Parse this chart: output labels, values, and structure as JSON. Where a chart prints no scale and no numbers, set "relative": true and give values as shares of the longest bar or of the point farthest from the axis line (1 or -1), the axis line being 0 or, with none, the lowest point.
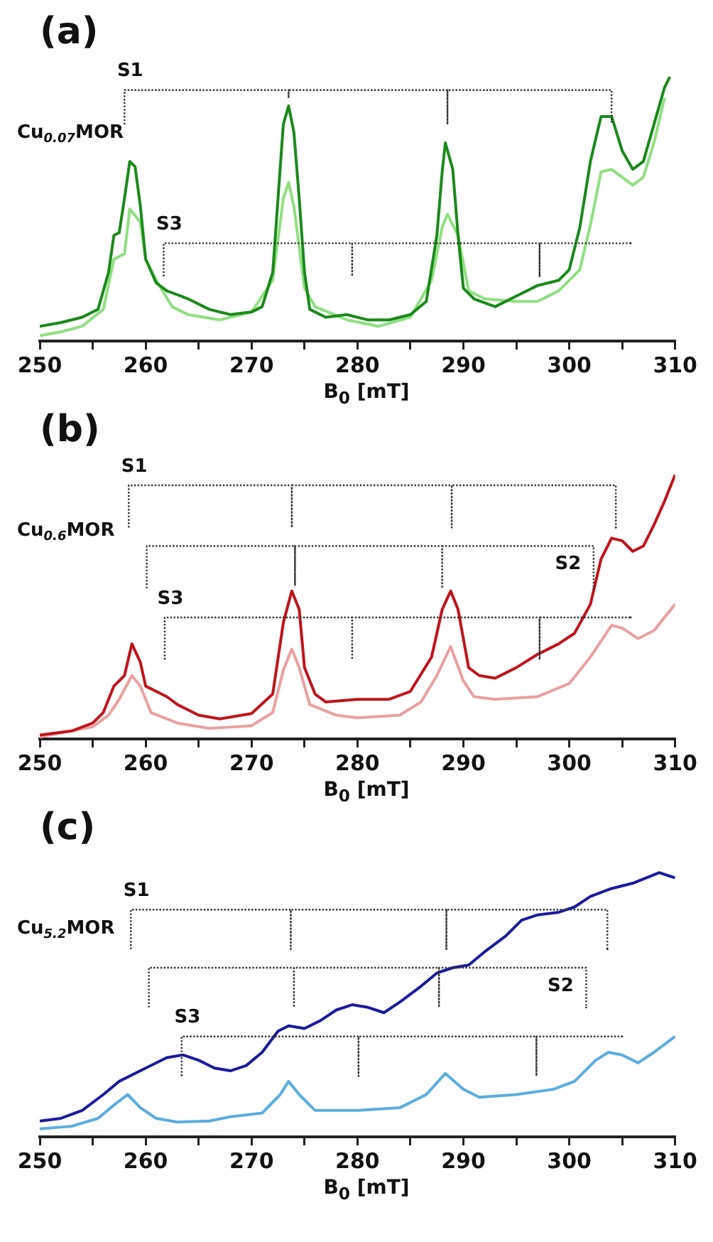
{
  "chart_data": [
    {
      "type": "line",
      "title": "(a)",
      "xlabel": "B$_{0}$ [mT]",
      "relative": true,
      "marker": "none",
      "tick_labels": "x",
      "legend": false,
      "xlim": [
        250,
        310
      ],
      "xticks": [
        250,
        {
          "value": 255,
          "label": null
        },
        260,
        {
          "value": 265,
          "label": null
        },
        270,
        {
          "value": 275,
          "label": null
        },
        280,
        {
          "value": 285,
          "label": null
        },
        290,
        {
          "value": 295,
          "label": null
        },
        300,
        {
          "value": 305,
          "label": null
        },
        310
      ],
      "annotations": [
        "Cu$_{0.07}$MOR"
      ],
      "series": [
        {
          "color": "#1a8a1a",
          "x": [
            250,
            252,
            254,
            255.5,
            256.5,
            257,
            257.5,
            258,
            258.5,
            259,
            259.5,
            260,
            261,
            262,
            264,
            266,
            268,
            270,
            271,
            272,
            272.5,
            273,
            273.5,
            274,
            274.5,
            275,
            275.5,
            277,
            279,
            281,
            283,
            285,
            286.5,
            287.5,
            288,
            288.3,
            289,
            289.5,
            290,
            291,
            293,
            295,
            297,
            299,
            300,
            301,
            302,
            303,
            304,
            305,
            306,
            307,
            308,
            309,
            309.5
          ],
          "values": [
            0.056,
            0.07,
            0.09,
            0.12,
            0.26,
            0.4,
            0.41,
            0.54,
            0.68,
            0.66,
            0.51,
            0.31,
            0.22,
            0.19,
            0.16,
            0.12,
            0.1,
            0.11,
            0.13,
            0.26,
            0.54,
            0.82,
            0.89,
            0.79,
            0.54,
            0.26,
            0.12,
            0.09,
            0.1,
            0.08,
            0.08,
            0.1,
            0.15,
            0.4,
            0.64,
            0.75,
            0.65,
            0.4,
            0.2,
            0.16,
            0.13,
            0.17,
            0.21,
            0.23,
            0.27,
            0.43,
            0.68,
            0.85,
            0.85,
            0.72,
            0.65,
            0.68,
            0.82,
            0.96,
            1.0
          ]
        },
        {
          "color": "#90e080",
          "x": [
            250,
            252,
            254,
            256,
            257,
            258,
            258.5,
            259.5,
            260,
            261,
            262.5,
            264,
            267,
            270,
            272,
            273,
            273.5,
            274,
            275,
            276,
            279,
            282,
            285,
            287,
            288,
            288.5,
            289.5,
            290.5,
            292,
            295,
            297,
            299,
            301,
            302,
            303,
            304,
            305,
            306,
            307,
            308,
            309
          ],
          "values": [
            0.02,
            0.035,
            0.056,
            0.12,
            0.31,
            0.33,
            0.5,
            0.45,
            0.31,
            0.23,
            0.13,
            0.1,
            0.08,
            0.11,
            0.23,
            0.54,
            0.6,
            0.51,
            0.2,
            0.13,
            0.08,
            0.056,
            0.09,
            0.23,
            0.43,
            0.48,
            0.4,
            0.19,
            0.16,
            0.15,
            0.15,
            0.19,
            0.27,
            0.44,
            0.64,
            0.65,
            0.62,
            0.59,
            0.62,
            0.75,
            0.92
          ]
        },
        {
          "name": "S1",
          "color": "#333333",
          "line_style": "dotted",
          "x": [
            258,
            258,
            273.5,
            273.5,
            273.5,
            288.5,
            288.5,
            288.5,
            304,
            304
          ],
          "values": [
            0.82,
            0.95,
            0.95,
            0.92,
            0.95,
            0.95,
            0.82,
            0.95,
            0.95,
            0.83
          ]
        },
        {
          "name": "S3",
          "color": "#333333",
          "line_style": "dotted",
          "x": [
            261.7,
            261.7,
            279.5,
            279.5,
            279.5,
            297.2,
            297.2,
            297.2,
            305.8
          ],
          "values": [
            0.245,
            0.37,
            0.37,
            0.245,
            0.37,
            0.37,
            0.245,
            0.37,
            0.37
          ]
        }
      ]
    },
    {
      "type": "line",
      "title": "(b)",
      "xlabel": "B$_{0}$ [mT]",
      "relative": true,
      "marker": "none",
      "tick_labels": "x",
      "legend": false,
      "xlim": [
        250,
        310
      ],
      "xticks": [
        250,
        {
          "value": 255,
          "label": null
        },
        260,
        {
          "value": 265,
          "label": null
        },
        270,
        {
          "value": 275,
          "label": null
        },
        280,
        {
          "value": 285,
          "label": null
        },
        290,
        {
          "value": 295,
          "label": null
        },
        300,
        {
          "value": 305,
          "label": null
        },
        310
      ],
      "annotations": [
        "Cu$_{0.6}$MOR"
      ],
      "series": [
        {
          "color": "#c0141c",
          "x": [
            250,
            253,
            255,
            256,
            257,
            258,
            258.7,
            259.5,
            260,
            262,
            263,
            265,
            267,
            270,
            272,
            273,
            273.8,
            274.5,
            275,
            276,
            277,
            280,
            283,
            285,
            287,
            288,
            288.8,
            289.5,
            290.5,
            291.5,
            293,
            295,
            297,
            299,
            300.5,
            302,
            303,
            304,
            305,
            306,
            307,
            308,
            309,
            310
          ],
          "values": [
            0.015,
            0.03,
            0.06,
            0.1,
            0.2,
            0.24,
            0.36,
            0.29,
            0.2,
            0.16,
            0.13,
            0.09,
            0.076,
            0.096,
            0.17,
            0.44,
            0.56,
            0.49,
            0.27,
            0.17,
            0.14,
            0.15,
            0.15,
            0.18,
            0.31,
            0.49,
            0.56,
            0.49,
            0.27,
            0.24,
            0.23,
            0.27,
            0.32,
            0.36,
            0.4,
            0.51,
            0.68,
            0.76,
            0.75,
            0.71,
            0.73,
            0.81,
            0.9,
            1.0
          ]
        },
        {
          "color": "#eba0a0",
          "x": [
            250,
            255,
            256.5,
            257.5,
            258.7,
            259.5,
            260.5,
            263,
            266,
            270,
            272,
            273,
            273.8,
            274.5,
            275.5,
            278,
            280,
            284,
            286,
            287.5,
            288.8,
            290,
            291,
            293,
            297,
            300,
            302,
            304,
            305,
            306.5,
            308,
            310
          ],
          "values": [
            0.007,
            0.046,
            0.09,
            0.15,
            0.24,
            0.2,
            0.1,
            0.06,
            0.04,
            0.05,
            0.1,
            0.26,
            0.34,
            0.27,
            0.13,
            0.09,
            0.08,
            0.09,
            0.14,
            0.24,
            0.35,
            0.22,
            0.16,
            0.15,
            0.16,
            0.21,
            0.31,
            0.43,
            0.42,
            0.38,
            0.41,
            0.51
          ]
        },
        {
          "name": "S1",
          "color": "#333333",
          "line_style": "dotted",
          "x": [
            258.4,
            258.4,
            273.8,
            273.8,
            273.8,
            288.9,
            288.9,
            288.9,
            304.4,
            304.4
          ],
          "values": [
            0.8,
            0.96,
            0.96,
            0.8,
            0.96,
            0.96,
            0.8,
            0.96,
            0.96,
            0.8
          ]
        },
        {
          "name": "S2",
          "color": "#333333",
          "line_style": "dotted",
          "x": [
            260.1,
            260.1,
            274.1,
            274.1,
            274.1,
            288,
            288,
            288,
            302.3,
            302.3
          ],
          "values": [
            0.57,
            0.73,
            0.73,
            0.58,
            0.73,
            0.73,
            0.57,
            0.73,
            0.73,
            0.57
          ]
        },
        {
          "name": "S3",
          "color": "#333333",
          "line_style": "dotted",
          "x": [
            261.8,
            261.8,
            279.5,
            279.5,
            279.5,
            297.2,
            297.2,
            297.2,
            305.8
          ],
          "values": [
            0.3,
            0.46,
            0.46,
            0.3,
            0.46,
            0.46,
            0.3,
            0.46,
            0.46
          ]
        }
      ]
    },
    {
      "type": "line",
      "title": "(c)",
      "xlabel": "B$_{0}$ [mT]",
      "relative": true,
      "marker": "none",
      "tick_labels": "x",
      "legend": false,
      "xlim": [
        250,
        310
      ],
      "xticks": [
        250,
        {
          "value": 255,
          "label": null
        },
        260,
        {
          "value": 265,
          "label": null
        },
        270,
        {
          "value": 275,
          "label": null
        },
        280,
        {
          "value": 285,
          "label": null
        },
        290,
        {
          "value": 295,
          "label": null
        },
        300,
        {
          "value": 305,
          "label": null
        },
        310
      ],
      "annotations": [
        "Cu$_{5.2}$MOR"
      ],
      "series": [
        {
          "color": "#1a1aa0",
          "x": [
            250,
            252,
            254,
            256,
            257.5,
            260,
            262,
            263.5,
            265,
            266.5,
            268,
            269.5,
            271,
            272.5,
            273.5,
            275,
            276.5,
            278,
            279.5,
            281,
            282.5,
            284,
            286,
            287.5,
            289,
            290.5,
            292,
            294,
            295.5,
            297,
            299,
            300.5,
            302,
            304,
            306,
            308.5,
            310
          ],
          "values": [
            0.06,
            0.07,
            0.1,
            0.16,
            0.21,
            0.26,
            0.3,
            0.31,
            0.29,
            0.26,
            0.25,
            0.27,
            0.32,
            0.4,
            0.42,
            0.41,
            0.44,
            0.48,
            0.5,
            0.49,
            0.47,
            0.51,
            0.57,
            0.62,
            0.64,
            0.65,
            0.7,
            0.76,
            0.82,
            0.84,
            0.85,
            0.87,
            0.91,
            0.94,
            0.96,
            1.0,
            0.98
          ]
        },
        {
          "color": "#5aaee0",
          "x": [
            250,
            253,
            255.5,
            257,
            258.3,
            259.5,
            261,
            263,
            266,
            268,
            271,
            272.7,
            273.5,
            274.5,
            276,
            280,
            284,
            286.5,
            288.3,
            290,
            291.5,
            295,
            298.5,
            300.5,
            302.5,
            303.7,
            305,
            306.5,
            308,
            310
          ],
          "values": [
            0.03,
            0.04,
            0.07,
            0.12,
            0.16,
            0.11,
            0.07,
            0.056,
            0.06,
            0.076,
            0.09,
            0.16,
            0.21,
            0.16,
            0.1,
            0.1,
            0.11,
            0.16,
            0.24,
            0.18,
            0.15,
            0.16,
            0.18,
            0.21,
            0.29,
            0.32,
            0.31,
            0.28,
            0.32,
            0.38
          ]
        },
        {
          "name": "S1",
          "color": "#333333",
          "line_style": "dotted",
          "x": [
            258.6,
            258.6,
            273.7,
            273.7,
            273.7,
            288.4,
            288.4,
            288.4,
            303.6,
            303.6
          ],
          "values": [
            0.71,
            0.86,
            0.86,
            0.71,
            0.86,
            0.86,
            0.71,
            0.86,
            0.86,
            0.71
          ]
        },
        {
          "name": "S2",
          "color": "#333333",
          "line_style": "dotted",
          "x": [
            260.3,
            260.3,
            274,
            274,
            274,
            287.7,
            287.7,
            287.7,
            301.6,
            301.6
          ],
          "values": [
            0.49,
            0.64,
            0.64,
            0.49,
            0.64,
            0.64,
            0.49,
            0.64,
            0.64,
            0.49
          ]
        },
        {
          "name": "S3",
          "color": "#333333",
          "line_style": "dotted",
          "x": [
            263.4,
            263.4,
            280.1,
            280.1,
            280.1,
            296.9,
            296.9,
            296.9,
            305
          ],
          "values": [
            0.23,
            0.38,
            0.38,
            0.23,
            0.38,
            0.38,
            0.23,
            0.38,
            0.38
          ]
        }
      ]
    }
  ]
}
